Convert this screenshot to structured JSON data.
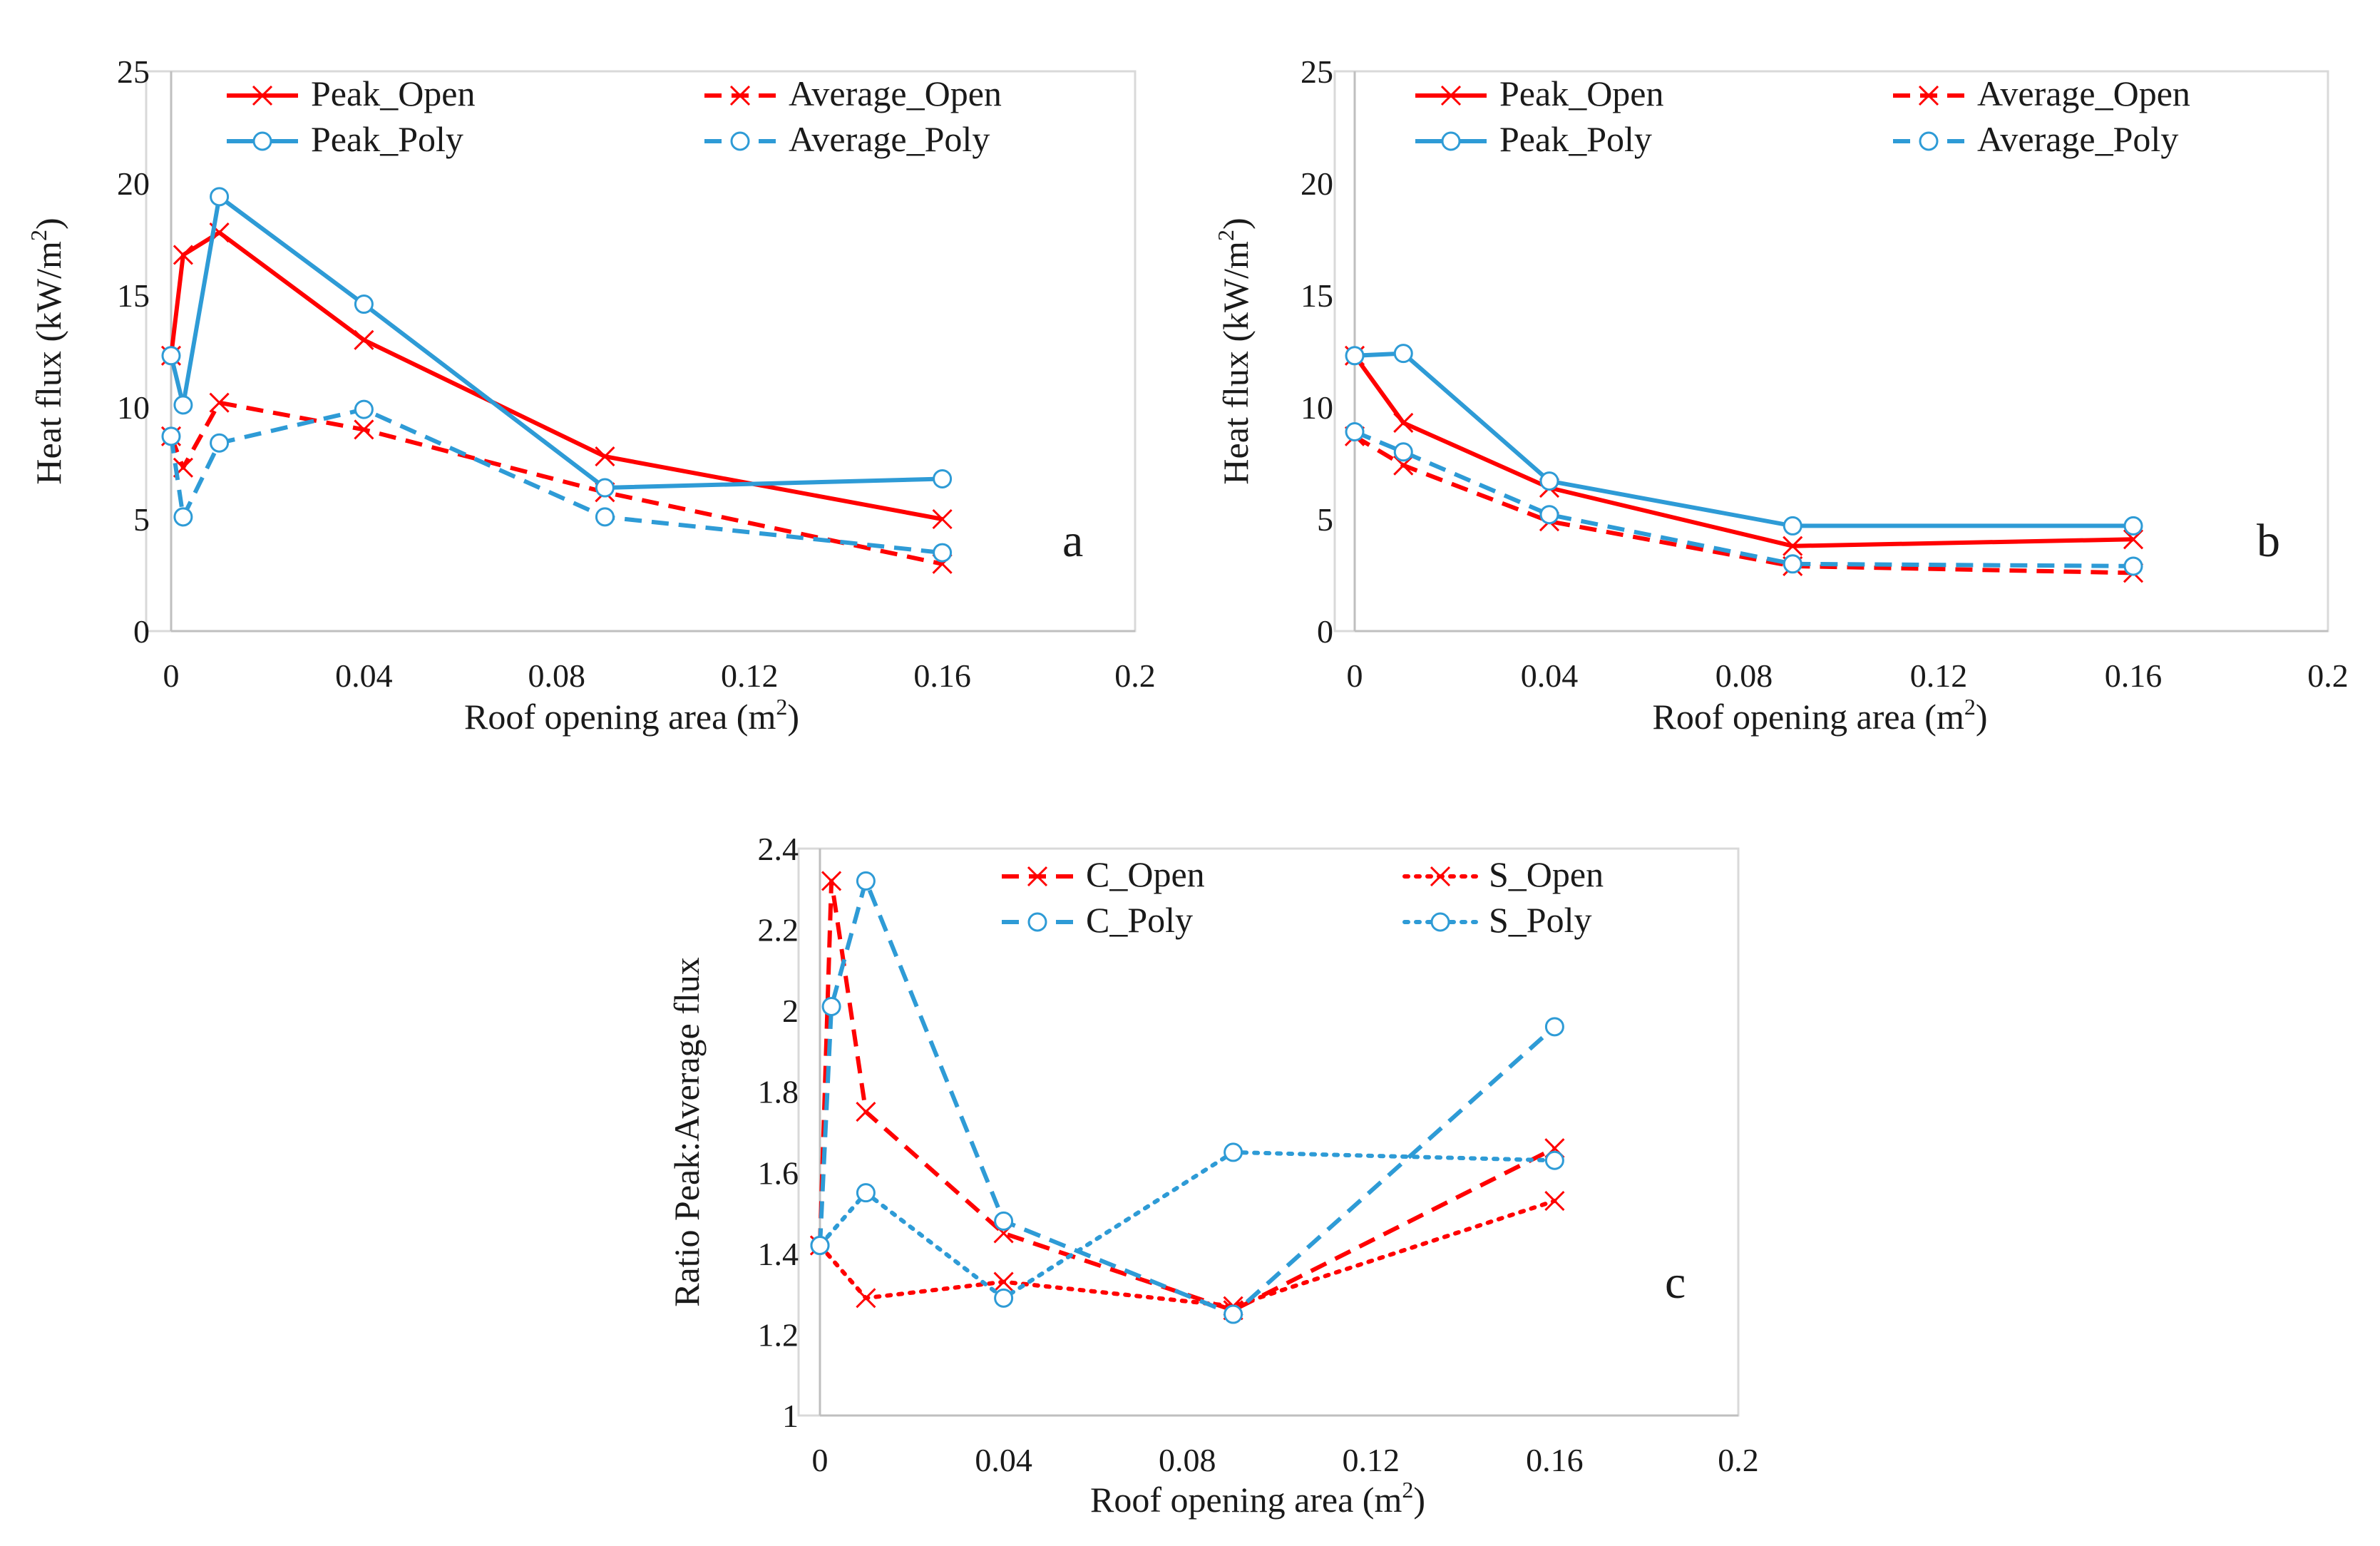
{
  "chart_data": [
    {
      "id": "a",
      "type": "line",
      "panel_label": "a",
      "xlabel": "Roof opening area (m",
      "xlabel_sup": "2",
      "xlabel_close": ")",
      "ylabel": "Heat flux (kW/m",
      "ylabel_sup": "2",
      "ylabel_close": ")",
      "xlim": [
        0,
        0.2
      ],
      "ylim": [
        0,
        25
      ],
      "xticks": [
        0,
        0.04,
        0.08,
        0.12,
        0.16,
        0.2
      ],
      "xtick_labels": [
        "0",
        "0.04",
        "0.08",
        "0.12",
        "0.16",
        "0.2"
      ],
      "yticks": [
        0,
        5,
        10,
        15,
        20,
        25
      ],
      "ytick_labels": [
        "0",
        "5",
        "10",
        "15",
        "20",
        "25"
      ],
      "legend": "top",
      "series": [
        {
          "name": "Peak_Open",
          "color": "#ff0000",
          "dash": "solid",
          "marker": "x",
          "points": [
            [
              0,
              12.3
            ],
            [
              0.0025,
              16.8
            ],
            [
              0.01,
              17.8
            ],
            [
              0.04,
              13.0
            ],
            [
              0.09,
              7.8
            ],
            [
              0.16,
              5.0
            ]
          ]
        },
        {
          "name": "Average_Open",
          "color": "#ff0000",
          "dash": "dashed",
          "marker": "x",
          "points": [
            [
              0,
              8.7
            ],
            [
              0.0025,
              7.3
            ],
            [
              0.01,
              10.2
            ],
            [
              0.04,
              9.0
            ],
            [
              0.09,
              6.2
            ],
            [
              0.16,
              3.0
            ]
          ]
        },
        {
          "name": "Peak_Poly",
          "color": "#2e9bd6",
          "dash": "solid",
          "marker": "o",
          "points": [
            [
              0,
              12.3
            ],
            [
              0.0025,
              10.1
            ],
            [
              0.01,
              19.4
            ],
            [
              0.04,
              14.6
            ],
            [
              0.09,
              6.4
            ],
            [
              0.16,
              6.8
            ]
          ]
        },
        {
          "name": "Average_Poly",
          "color": "#2e9bd6",
          "dash": "dashed",
          "marker": "o",
          "points": [
            [
              0,
              8.7
            ],
            [
              0.0025,
              5.1
            ],
            [
              0.01,
              8.4
            ],
            [
              0.04,
              9.9
            ],
            [
              0.09,
              5.1
            ],
            [
              0.16,
              3.5
            ]
          ]
        }
      ]
    },
    {
      "id": "b",
      "type": "line",
      "panel_label": "b",
      "xlabel": "Roof opening area (m",
      "xlabel_sup": "2",
      "xlabel_close": ")",
      "ylabel": "Heat flux (kW/m",
      "ylabel_sup": "2",
      "ylabel_close": ")",
      "xlim": [
        0,
        0.2
      ],
      "ylim": [
        0,
        25
      ],
      "xticks": [
        0,
        0.04,
        0.08,
        0.12,
        0.16,
        0.2
      ],
      "xtick_labels": [
        "0",
        "0.04",
        "0.08",
        "0.12",
        "0.16",
        "0.2"
      ],
      "yticks": [
        0,
        5,
        10,
        15,
        20,
        25
      ],
      "ytick_labels": [
        "0",
        "5",
        "10",
        "15",
        "20",
        "25"
      ],
      "legend": "top",
      "series": [
        {
          "name": "Peak_Open",
          "color": "#ff0000",
          "dash": "solid",
          "marker": "x",
          "points": [
            [
              0,
              12.3
            ],
            [
              0.01,
              9.3
            ],
            [
              0.04,
              6.4
            ],
            [
              0.09,
              3.8
            ],
            [
              0.16,
              4.1
            ]
          ]
        },
        {
          "name": "Average_Open",
          "color": "#ff0000",
          "dash": "dashed",
          "marker": "x",
          "points": [
            [
              0,
              8.7
            ],
            [
              0.01,
              7.4
            ],
            [
              0.04,
              4.9
            ],
            [
              0.09,
              2.9
            ],
            [
              0.16,
              2.6
            ]
          ]
        },
        {
          "name": "Peak_Poly",
          "color": "#2e9bd6",
          "dash": "solid",
          "marker": "o",
          "points": [
            [
              0,
              12.3
            ],
            [
              0.01,
              12.4
            ],
            [
              0.04,
              6.7
            ],
            [
              0.09,
              4.7
            ],
            [
              0.16,
              4.7
            ]
          ]
        },
        {
          "name": "Average_Poly",
          "color": "#2e9bd6",
          "dash": "dashed",
          "marker": "o",
          "points": [
            [
              0,
              8.9
            ],
            [
              0.01,
              8.0
            ],
            [
              0.04,
              5.2
            ],
            [
              0.09,
              3.0
            ],
            [
              0.16,
              2.9
            ]
          ]
        }
      ]
    },
    {
      "id": "c",
      "type": "line",
      "panel_label": "c",
      "xlabel": "Roof opening area (m",
      "xlabel_sup": "2",
      "xlabel_close": ")",
      "ylabel": "Ratio Peak:Average  flux",
      "ylabel_sup": "",
      "ylabel_close": "",
      "xlim": [
        0,
        0.2
      ],
      "ylim": [
        1,
        2.4
      ],
      "xticks": [
        0,
        0.04,
        0.08,
        0.12,
        0.16,
        0.2
      ],
      "xtick_labels": [
        "0",
        "0.04",
        "0.08",
        "0.12",
        "0.16",
        "0.2"
      ],
      "yticks": [
        1,
        1.2,
        1.4,
        1.6,
        1.8,
        2,
        2.2,
        2.4
      ],
      "ytick_labels": [
        "1",
        "1.2",
        "1.4",
        "1.6",
        "1.8",
        "2",
        "2.2",
        "2.4"
      ],
      "legend": "top",
      "series": [
        {
          "name": "C_Open",
          "color": "#ff0000",
          "dash": "dashed",
          "marker": "x",
          "points": [
            [
              0,
              1.42
            ],
            [
              0.0025,
              2.32
            ],
            [
              0.01,
              1.75
            ],
            [
              0.04,
              1.45
            ],
            [
              0.09,
              1.26
            ],
            [
              0.16,
              1.66
            ]
          ]
        },
        {
          "name": "S_Open",
          "color": "#ff0000",
          "dash": "dotted",
          "marker": "x",
          "points": [
            [
              0,
              1.42
            ],
            [
              0.01,
              1.29
            ],
            [
              0.04,
              1.33
            ],
            [
              0.09,
              1.27
            ],
            [
              0.16,
              1.53
            ]
          ]
        },
        {
          "name": "C_Poly",
          "color": "#2e9bd6",
          "dash": "dashed",
          "marker": "o",
          "points": [
            [
              0,
              1.42
            ],
            [
              0.0025,
              2.01
            ],
            [
              0.01,
              2.32
            ],
            [
              0.04,
              1.48
            ],
            [
              0.09,
              1.25
            ],
            [
              0.16,
              1.96
            ]
          ]
        },
        {
          "name": "S_Poly",
          "color": "#2e9bd6",
          "dash": "dotted",
          "marker": "o",
          "points": [
            [
              0,
              1.42
            ],
            [
              0.01,
              1.55
            ],
            [
              0.04,
              1.29
            ],
            [
              0.09,
              1.65
            ],
            [
              0.16,
              1.63
            ]
          ]
        }
      ]
    }
  ]
}
